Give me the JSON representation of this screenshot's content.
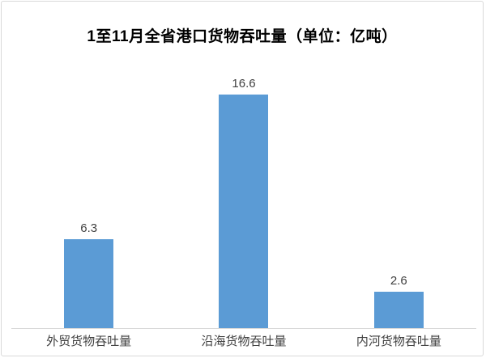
{
  "chart_data": {
    "type": "bar",
    "title": "1至11月全省港口货物吞吐量（单位：亿吨）",
    "unit": "亿吨",
    "categories": [
      "外贸货物吞吐量",
      "沿海货物吞吐量",
      "内河货物吞吐量"
    ],
    "values": [
      6.3,
      16.6,
      2.6
    ],
    "data_labels": [
      "6.3",
      "16.6",
      "2.6"
    ],
    "xlabel": "",
    "ylabel": "",
    "ylim": [
      0,
      18.4
    ],
    "grid": false,
    "legend": false,
    "bar_color": "#5b9bd5",
    "axis_color": "#d9d9d9",
    "label_color": "#404040",
    "title_color": "#000000"
  }
}
